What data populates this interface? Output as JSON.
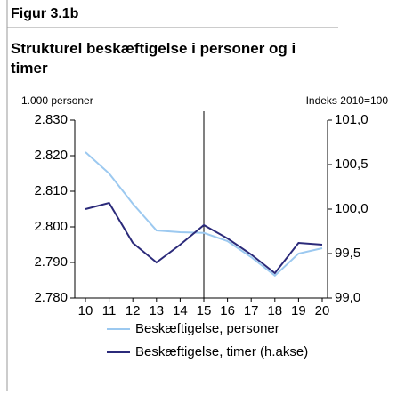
{
  "figure_label": "Figur 3.1b",
  "chart_data": {
    "type": "line",
    "title": "Strukturel beskæftigelse i personer og i timer",
    "y_label": "1.000 personer",
    "y2_label": "Indeks 2010=100",
    "categories": [
      "10",
      "11",
      "12",
      "13",
      "14",
      "15",
      "16",
      "17",
      "18",
      "19",
      "20"
    ],
    "series": [
      {
        "name": "Beskæftigelse, personer",
        "color": "#9cc9f0",
        "axis": "y",
        "values": [
          2821,
          2815,
          2806.5,
          2799,
          2798.5,
          2798.3,
          2796,
          2791.5,
          2786.3,
          2792.5,
          2794
        ]
      },
      {
        "name": "Beskæftigelse, timer (h.akse)",
        "color": "#2b2a7a",
        "axis": "y2",
        "values": [
          100.0,
          100.07,
          99.62,
          99.4,
          99.6,
          99.82,
          99.67,
          99.49,
          99.28,
          99.62,
          99.6
        ]
      }
    ],
    "ylim": [
      2780,
      2830
    ],
    "yticks": [
      {
        "value": 2780,
        "label": "2.780"
      },
      {
        "value": 2790,
        "label": "2.790"
      },
      {
        "value": 2800,
        "label": "2.800"
      },
      {
        "value": 2810,
        "label": "2.810"
      },
      {
        "value": 2820,
        "label": "2.820"
      },
      {
        "value": 2830,
        "label": "2.830"
      }
    ],
    "y2lim": [
      99.0,
      101.0
    ],
    "y2ticks": [
      {
        "value": 99.0,
        "label": "99,0"
      },
      {
        "value": 99.5,
        "label": "99,5"
      },
      {
        "value": 100.0,
        "label": "100,0"
      },
      {
        "value": 100.5,
        "label": "100,5"
      },
      {
        "value": 101.0,
        "label": "101,0"
      }
    ],
    "vline": 15,
    "legend": "bottom"
  }
}
